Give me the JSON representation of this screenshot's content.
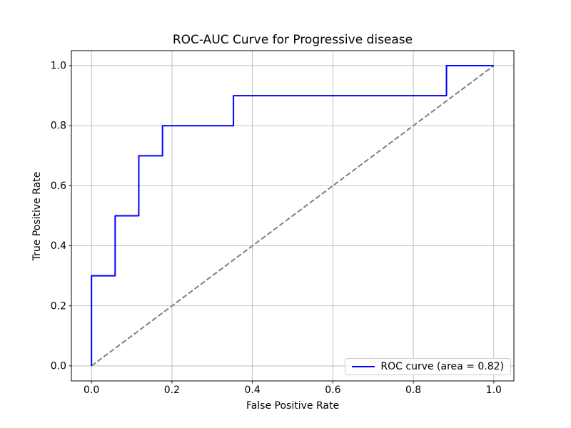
{
  "figure": {
    "title": "ROC-AUC Curve for Progressive disease",
    "xlabel": "False Positive Rate",
    "ylabel": "True Positive Rate",
    "legend": {
      "label": "ROC curve (area = 0.82)",
      "position": "lower right"
    }
  },
  "chart_data": {
    "type": "line",
    "subtype": "roc-step-curve",
    "title": "ROC-AUC Curve for Progressive disease",
    "xlabel": "False Positive Rate",
    "ylabel": "True Positive Rate",
    "xlim": [
      -0.05,
      1.05
    ],
    "ylim": [
      -0.05,
      1.05
    ],
    "xtick_values": [
      0.0,
      0.2,
      0.4,
      0.6,
      0.8,
      1.0
    ],
    "xtick_labels": [
      "0.0",
      "0.2",
      "0.4",
      "0.6",
      "0.8",
      "1.0"
    ],
    "ytick_values": [
      0.0,
      0.2,
      0.4,
      0.6,
      0.8,
      1.0
    ],
    "ytick_labels": [
      "0.0",
      "0.2",
      "0.4",
      "0.6",
      "0.8",
      "1.0"
    ],
    "grid": true,
    "legend_position": "lower right",
    "auc": 0.82,
    "series": [
      {
        "label": "ROC curve (area = 0.82)",
        "color": "#0000ff",
        "style": "solid",
        "line_width": 2,
        "x": [
          0.0,
          0.0,
          0.0588,
          0.0588,
          0.1176,
          0.1176,
          0.1765,
          0.1765,
          0.3529,
          0.3529,
          0.8824,
          0.8824,
          1.0
        ],
        "y": [
          0.0,
          0.3,
          0.3,
          0.5,
          0.5,
          0.7,
          0.7,
          0.8,
          0.8,
          0.9,
          0.9,
          1.0,
          1.0
        ]
      },
      {
        "label": "",
        "color": "#808080",
        "style": "dashed",
        "line_width": 2,
        "x": [
          0.0,
          1.0
        ],
        "y": [
          0.0,
          1.0
        ]
      }
    ]
  },
  "colors": {
    "roc_curve": "#0000ff",
    "diagonal": "#808080",
    "grid": "#b0b0b0",
    "spine": "#000000",
    "text": "#000000",
    "background": "#ffffff",
    "legend_border": "#cccccc"
  }
}
